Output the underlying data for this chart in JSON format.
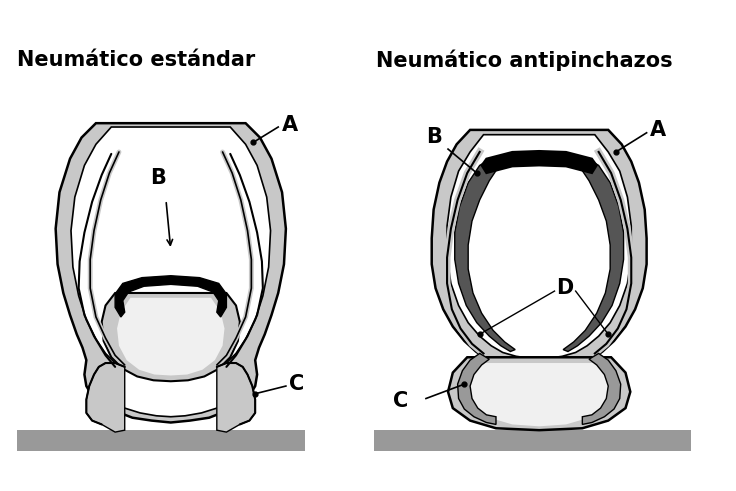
{
  "title_left": "Neumático estándar",
  "title_right": "Neumático antipinchazos",
  "bg_color": "#ffffff",
  "label_A": "A",
  "label_B": "B",
  "label_C": "C",
  "label_D": "D",
  "title_fontsize": 15,
  "label_fontsize": 15,
  "light_gray": "#c8c8c8",
  "mid_gray": "#999999",
  "dark_gray": "#555555",
  "black": "#000000",
  "white": "#ffffff",
  "road_gray": "#999999",
  "near_white": "#f0f0f0"
}
